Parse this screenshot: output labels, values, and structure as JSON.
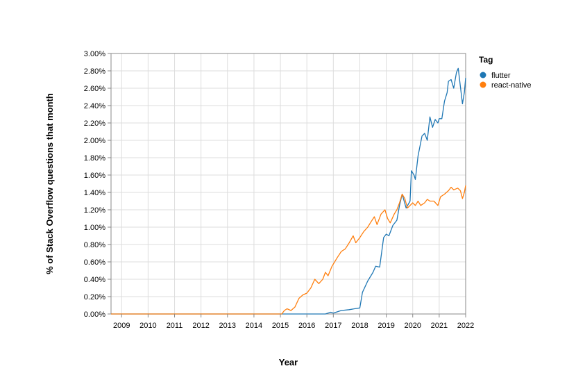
{
  "chart_data": {
    "type": "line",
    "title": "",
    "xlabel": "Year",
    "ylabel": "% of Stack Overflow questions that month",
    "xlim": [
      2008.6,
      2022.0
    ],
    "ylim": [
      0,
      3.0
    ],
    "x_ticks": [
      "2009",
      "2010",
      "2011",
      "2012",
      "2013",
      "2014",
      "2015",
      "2016",
      "2017",
      "2018",
      "2019",
      "2020",
      "2021",
      "2022"
    ],
    "y_ticks": [
      "0.00%",
      "0.20%",
      "0.40%",
      "0.60%",
      "0.80%",
      "1.00%",
      "1.20%",
      "1.40%",
      "1.60%",
      "1.80%",
      "2.00%",
      "2.20%",
      "2.40%",
      "2.60%",
      "2.80%",
      "3.00%"
    ],
    "grid": true,
    "legend": {
      "title": "Tag",
      "position": "top-right"
    },
    "series": [
      {
        "name": "flutter",
        "color": "#1f77b4",
        "points": [
          [
            2008.6,
            0
          ],
          [
            2015.0,
            0
          ],
          [
            2016.0,
            0
          ],
          [
            2016.7,
            0
          ],
          [
            2016.9,
            0.02
          ],
          [
            2017.0,
            0.01
          ],
          [
            2017.3,
            0.04
          ],
          [
            2017.6,
            0.05
          ],
          [
            2017.8,
            0.06
          ],
          [
            2018.0,
            0.07
          ],
          [
            2018.1,
            0.25
          ],
          [
            2018.3,
            0.38
          ],
          [
            2018.5,
            0.48
          ],
          [
            2018.6,
            0.55
          ],
          [
            2018.75,
            0.54
          ],
          [
            2018.9,
            0.88
          ],
          [
            2019.0,
            0.92
          ],
          [
            2019.1,
            0.9
          ],
          [
            2019.25,
            1.02
          ],
          [
            2019.4,
            1.08
          ],
          [
            2019.5,
            1.25
          ],
          [
            2019.6,
            1.38
          ],
          [
            2019.75,
            1.22
          ],
          [
            2019.9,
            1.3
          ],
          [
            2019.95,
            1.65
          ],
          [
            2020.05,
            1.6
          ],
          [
            2020.1,
            1.55
          ],
          [
            2020.2,
            1.82
          ],
          [
            2020.35,
            2.05
          ],
          [
            2020.45,
            2.08
          ],
          [
            2020.55,
            2.0
          ],
          [
            2020.65,
            2.27
          ],
          [
            2020.75,
            2.15
          ],
          [
            2020.85,
            2.24
          ],
          [
            2020.95,
            2.2
          ],
          [
            2021.0,
            2.25
          ],
          [
            2021.1,
            2.25
          ],
          [
            2021.2,
            2.45
          ],
          [
            2021.3,
            2.55
          ],
          [
            2021.35,
            2.68
          ],
          [
            2021.45,
            2.7
          ],
          [
            2021.55,
            2.6
          ],
          [
            2021.65,
            2.78
          ],
          [
            2021.72,
            2.83
          ],
          [
            2021.8,
            2.62
          ],
          [
            2021.88,
            2.42
          ],
          [
            2021.95,
            2.55
          ],
          [
            2022.0,
            2.72
          ]
        ]
      },
      {
        "name": "react-native",
        "color": "#ff7f0e",
        "points": [
          [
            2008.6,
            0
          ],
          [
            2015.05,
            0
          ],
          [
            2015.15,
            0.04
          ],
          [
            2015.25,
            0.06
          ],
          [
            2015.4,
            0.04
          ],
          [
            2015.55,
            0.08
          ],
          [
            2015.7,
            0.18
          ],
          [
            2015.85,
            0.22
          ],
          [
            2016.0,
            0.24
          ],
          [
            2016.15,
            0.3
          ],
          [
            2016.3,
            0.4
          ],
          [
            2016.45,
            0.35
          ],
          [
            2016.6,
            0.4
          ],
          [
            2016.7,
            0.48
          ],
          [
            2016.8,
            0.44
          ],
          [
            2016.95,
            0.55
          ],
          [
            2017.05,
            0.6
          ],
          [
            2017.15,
            0.65
          ],
          [
            2017.3,
            0.72
          ],
          [
            2017.45,
            0.75
          ],
          [
            2017.6,
            0.82
          ],
          [
            2017.75,
            0.9
          ],
          [
            2017.85,
            0.82
          ],
          [
            2018.0,
            0.88
          ],
          [
            2018.15,
            0.95
          ],
          [
            2018.3,
            1.0
          ],
          [
            2018.4,
            1.05
          ],
          [
            2018.55,
            1.12
          ],
          [
            2018.65,
            1.03
          ],
          [
            2018.8,
            1.15
          ],
          [
            2018.95,
            1.2
          ],
          [
            2019.05,
            1.1
          ],
          [
            2019.15,
            1.05
          ],
          [
            2019.3,
            1.15
          ],
          [
            2019.4,
            1.2
          ],
          [
            2019.5,
            1.28
          ],
          [
            2019.6,
            1.38
          ],
          [
            2019.7,
            1.33
          ],
          [
            2019.8,
            1.22
          ],
          [
            2019.9,
            1.25
          ],
          [
            2020.0,
            1.28
          ],
          [
            2020.1,
            1.25
          ],
          [
            2020.2,
            1.3
          ],
          [
            2020.3,
            1.25
          ],
          [
            2020.45,
            1.28
          ],
          [
            2020.55,
            1.32
          ],
          [
            2020.65,
            1.3
          ],
          [
            2020.8,
            1.3
          ],
          [
            2020.95,
            1.25
          ],
          [
            2021.05,
            1.35
          ],
          [
            2021.2,
            1.38
          ],
          [
            2021.35,
            1.42
          ],
          [
            2021.45,
            1.46
          ],
          [
            2021.55,
            1.43
          ],
          [
            2021.7,
            1.45
          ],
          [
            2021.8,
            1.42
          ],
          [
            2021.88,
            1.33
          ],
          [
            2021.95,
            1.4
          ],
          [
            2022.0,
            1.48
          ]
        ]
      }
    ]
  }
}
